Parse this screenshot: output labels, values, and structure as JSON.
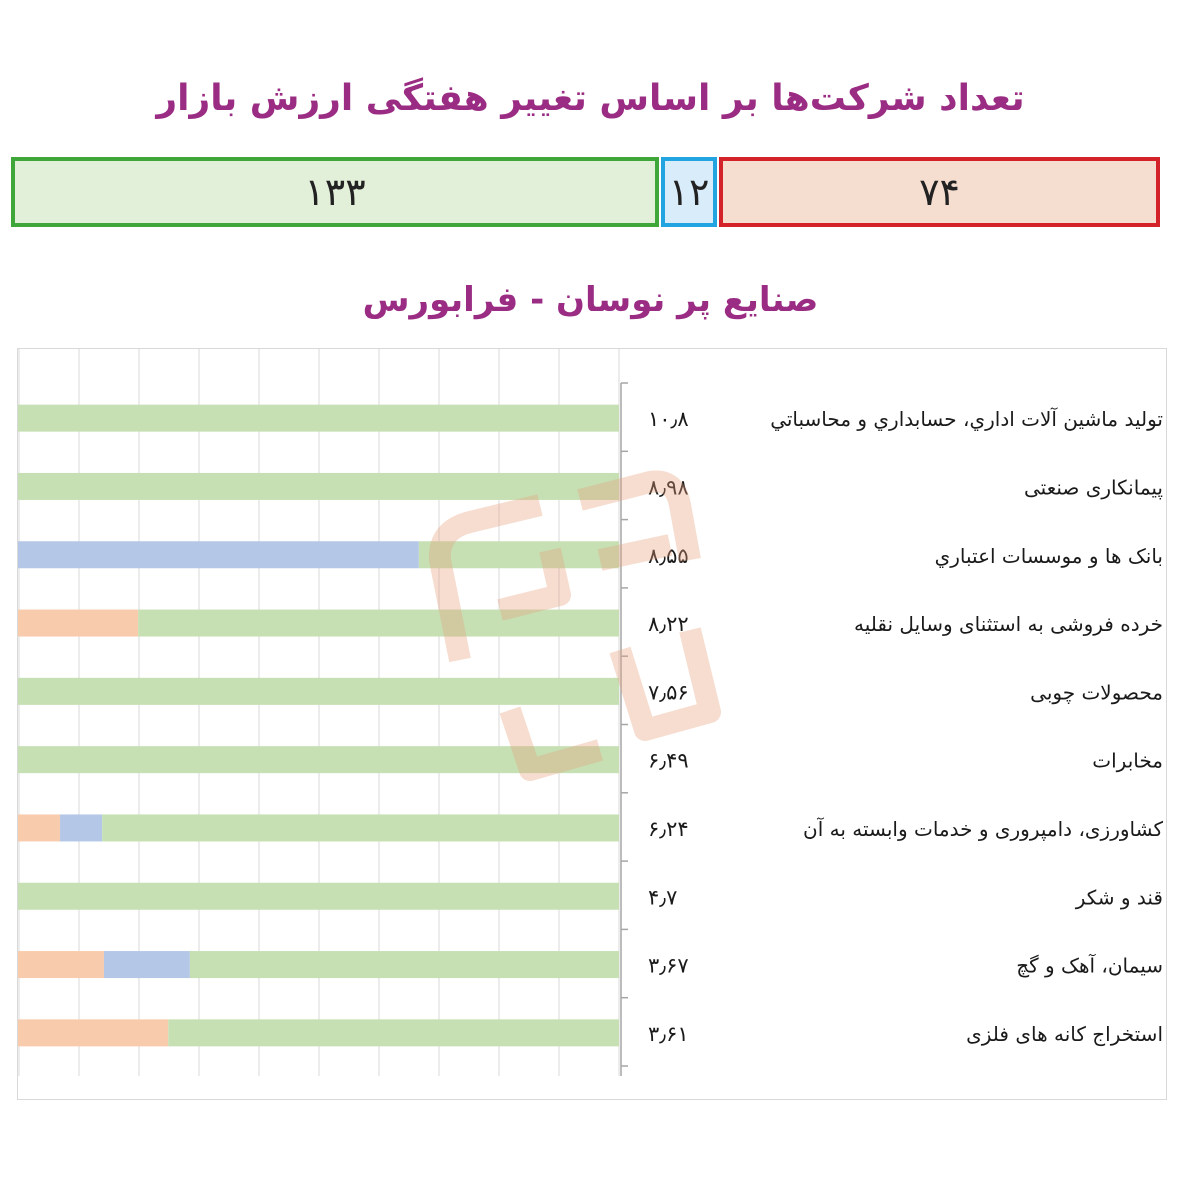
{
  "header": {
    "title": "تعداد شرکت‌ها بر اساس تغییر هفتگی ارزش بازار",
    "counts": {
      "up": "۱۳۳",
      "flat": "۱۲",
      "down": "۷۴"
    }
  },
  "colors": {
    "title": "#9b2c83",
    "up_fill": "#e2efd9",
    "up_border": "#3fa73a",
    "flat_fill": "#d9ecfa",
    "flat_border": "#21a4e0",
    "down_fill": "#f5ddd0",
    "down_border": "#d3222a",
    "bar_green": "#c6e0b4",
    "bar_blue": "#b4c7e7",
    "bar_orange": "#f8cbad"
  },
  "chart_data": {
    "type": "bar",
    "title": "صنایع پر نوسان - فرابورس",
    "orientation": "horizontal-stacked-100",
    "grid": true,
    "categories": [
      "تولید ماشین آلات اداري، حسابداري و محاسباتي",
      "پیمانکاری صنعتی",
      "بانک ها و موسسات اعتباري",
      "خرده فروشی به استثنای وسایل نقلیه",
      "محصولات چوبی",
      "مخابرات",
      "کشاورزی، دامپروری و خدمات وابسته به آن",
      "قند و شکر",
      "سیمان، آهک و گچ",
      "استخراج کانه های فلزی"
    ],
    "value_labels": [
      "۱۰٫۸",
      "۸٫۹۸",
      "۸٫۵۵",
      "۸٫۲۲",
      "۷٫۵۶",
      "۶٫۴۹",
      "۶٫۲۴",
      "۴٫۷",
      "۳٫۶۷",
      "۳٫۶۱"
    ],
    "values": [
      10.8,
      8.98,
      8.55,
      8.22,
      7.56,
      6.49,
      6.24,
      4.7,
      3.67,
      3.61
    ],
    "series": [
      {
        "color": "#f8cbad",
        "values": [
          0,
          0,
          0,
          0.2,
          0,
          0,
          0.07,
          0,
          0.143,
          0.25
        ]
      },
      {
        "color": "#b4c7e7",
        "values": [
          0,
          0,
          0.667,
          0,
          0,
          0,
          0.07,
          0,
          0.143,
          0
        ]
      },
      {
        "color": "#c6e0b4",
        "values": [
          1,
          1,
          0.333,
          0.8,
          1,
          1,
          0.86,
          1,
          0.714,
          0.75
        ]
      }
    ]
  }
}
